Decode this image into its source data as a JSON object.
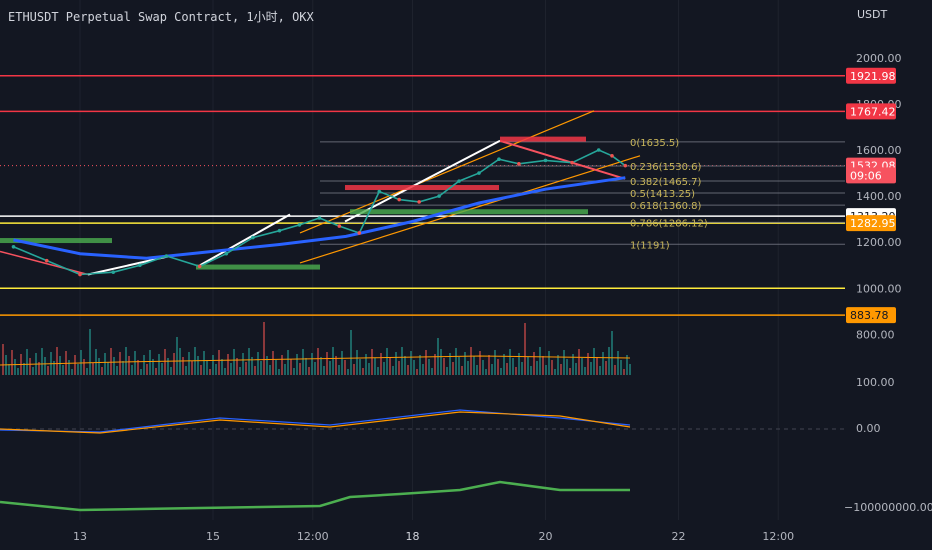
{
  "header": {
    "title": "ETHUSDT Perpetual Swap Contract, 1小时, OKX",
    "unit": "USDT"
  },
  "chart_data": {
    "type": "line",
    "title": "ETHUSDT Perpetual Swap Contract, 1小时, OKX",
    "unit": "USDT",
    "price_axis": {
      "ticks": [
        {
          "label": "2000.00",
          "v": 2000
        },
        {
          "label": "1800.00",
          "v": 1800
        },
        {
          "label": "1600.00",
          "v": 1600
        },
        {
          "label": "1400.00",
          "v": 1400
        },
        {
          "label": "1200.00",
          "v": 1200
        },
        {
          "label": "1000.00",
          "v": 1000
        },
        {
          "label": "800.00",
          "v": 800
        }
      ]
    },
    "x_axis": {
      "ticks": [
        {
          "label": "13",
          "d": 13
        },
        {
          "label": "15",
          "d": 15
        },
        {
          "label": "12:00",
          "d": 16.5
        },
        {
          "label": "18",
          "d": 18
        },
        {
          "label": "20",
          "d": 20
        },
        {
          "label": "22",
          "d": 22
        },
        {
          "label": "12:00",
          "d": 23.5
        }
      ]
    },
    "price_labels": [
      {
        "text": "1921.98",
        "v": 1921.98,
        "bg": "#f23645",
        "fg": "#ffffff"
      },
      {
        "text": "1767.42",
        "v": 1767.42,
        "bg": "#f23645",
        "fg": "#ffffff"
      },
      {
        "text": "1532.08",
        "v": 1532.08,
        "bg": "#f7525f",
        "fg": "#ffffff"
      },
      {
        "text": "09:06",
        "v": 1490,
        "bg": "#f7525f",
        "fg": "#ffffff"
      },
      {
        "text": "1313.20",
        "v": 1313.2,
        "bg": "#ffffff",
        "fg": "#131722"
      },
      {
        "text": "1282.95",
        "v": 1282.95,
        "bg": "#ff9800",
        "fg": "#ffffff"
      },
      {
        "text": "883.78",
        "v": 883.78,
        "bg": "#ff9800",
        "fg": "#131722"
      }
    ],
    "horizontal_levels": [
      {
        "v": 1921.98,
        "color": "#f23645"
      },
      {
        "v": 1767.42,
        "color": "#f23645"
      },
      {
        "v": 1313.2,
        "color": "#ffffff"
      },
      {
        "v": 1282.95,
        "color": "#ffeb3b"
      },
      {
        "v": 1000,
        "color": "#ffeb3b"
      },
      {
        "v": 883.78,
        "color": "#ff9800"
      }
    ],
    "fibonacci": [
      {
        "label": "0(1635.5)",
        "v": 1635.5
      },
      {
        "label": "0.236(1530.6)",
        "v": 1530.6
      },
      {
        "label": "0.382(1465.7)",
        "v": 1465.7
      },
      {
        "label": "0.5(1413.25)",
        "v": 1413.25
      },
      {
        "label": "0.618(1360.8)",
        "v": 1360.8
      },
      {
        "label": "0.786(1286.12)",
        "v": 1286.12
      },
      {
        "label": "1(1191)",
        "v": 1191
      }
    ],
    "price_series": [
      {
        "d": 12.0,
        "v": 1180
      },
      {
        "d": 12.5,
        "v": 1120
      },
      {
        "d": 13.0,
        "v": 1060
      },
      {
        "d": 13.5,
        "v": 1070
      },
      {
        "d": 13.9,
        "v": 1100
      },
      {
        "d": 14.3,
        "v": 1140
      },
      {
        "d": 14.8,
        "v": 1095
      },
      {
        "d": 15.2,
        "v": 1150
      },
      {
        "d": 15.6,
        "v": 1220
      },
      {
        "d": 16.0,
        "v": 1250
      },
      {
        "d": 16.3,
        "v": 1275
      },
      {
        "d": 16.6,
        "v": 1305
      },
      {
        "d": 16.9,
        "v": 1270
      },
      {
        "d": 17.2,
        "v": 1240
      },
      {
        "d": 17.5,
        "v": 1420
      },
      {
        "d": 17.8,
        "v": 1385
      },
      {
        "d": 18.1,
        "v": 1375
      },
      {
        "d": 18.4,
        "v": 1400
      },
      {
        "d": 18.7,
        "v": 1465
      },
      {
        "d": 19.0,
        "v": 1500
      },
      {
        "d": 19.3,
        "v": 1560
      },
      {
        "d": 19.6,
        "v": 1540
      },
      {
        "d": 20.0,
        "v": 1555
      },
      {
        "d": 20.4,
        "v": 1545
      },
      {
        "d": 20.8,
        "v": 1600
      },
      {
        "d": 21.0,
        "v": 1575
      },
      {
        "d": 21.2,
        "v": 1532
      }
    ],
    "moving_average": [
      {
        "d": 12.0,
        "v": 1210
      },
      {
        "d": 13.0,
        "v": 1150
      },
      {
        "d": 14.0,
        "v": 1130
      },
      {
        "d": 15.0,
        "v": 1160
      },
      {
        "d": 16.0,
        "v": 1190
      },
      {
        "d": 17.0,
        "v": 1225
      },
      {
        "d": 18.0,
        "v": 1290
      },
      {
        "d": 19.0,
        "v": 1370
      },
      {
        "d": 20.0,
        "v": 1430
      },
      {
        "d": 21.2,
        "v": 1480
      }
    ],
    "indicators": {
      "volume_ticks": [
        {
          "label": "100.00"
        }
      ],
      "oscillator_ticks": [
        {
          "label": "0.00"
        }
      ],
      "obv_ticks": [
        {
          "label": "−100000000.00"
        }
      ]
    }
  }
}
